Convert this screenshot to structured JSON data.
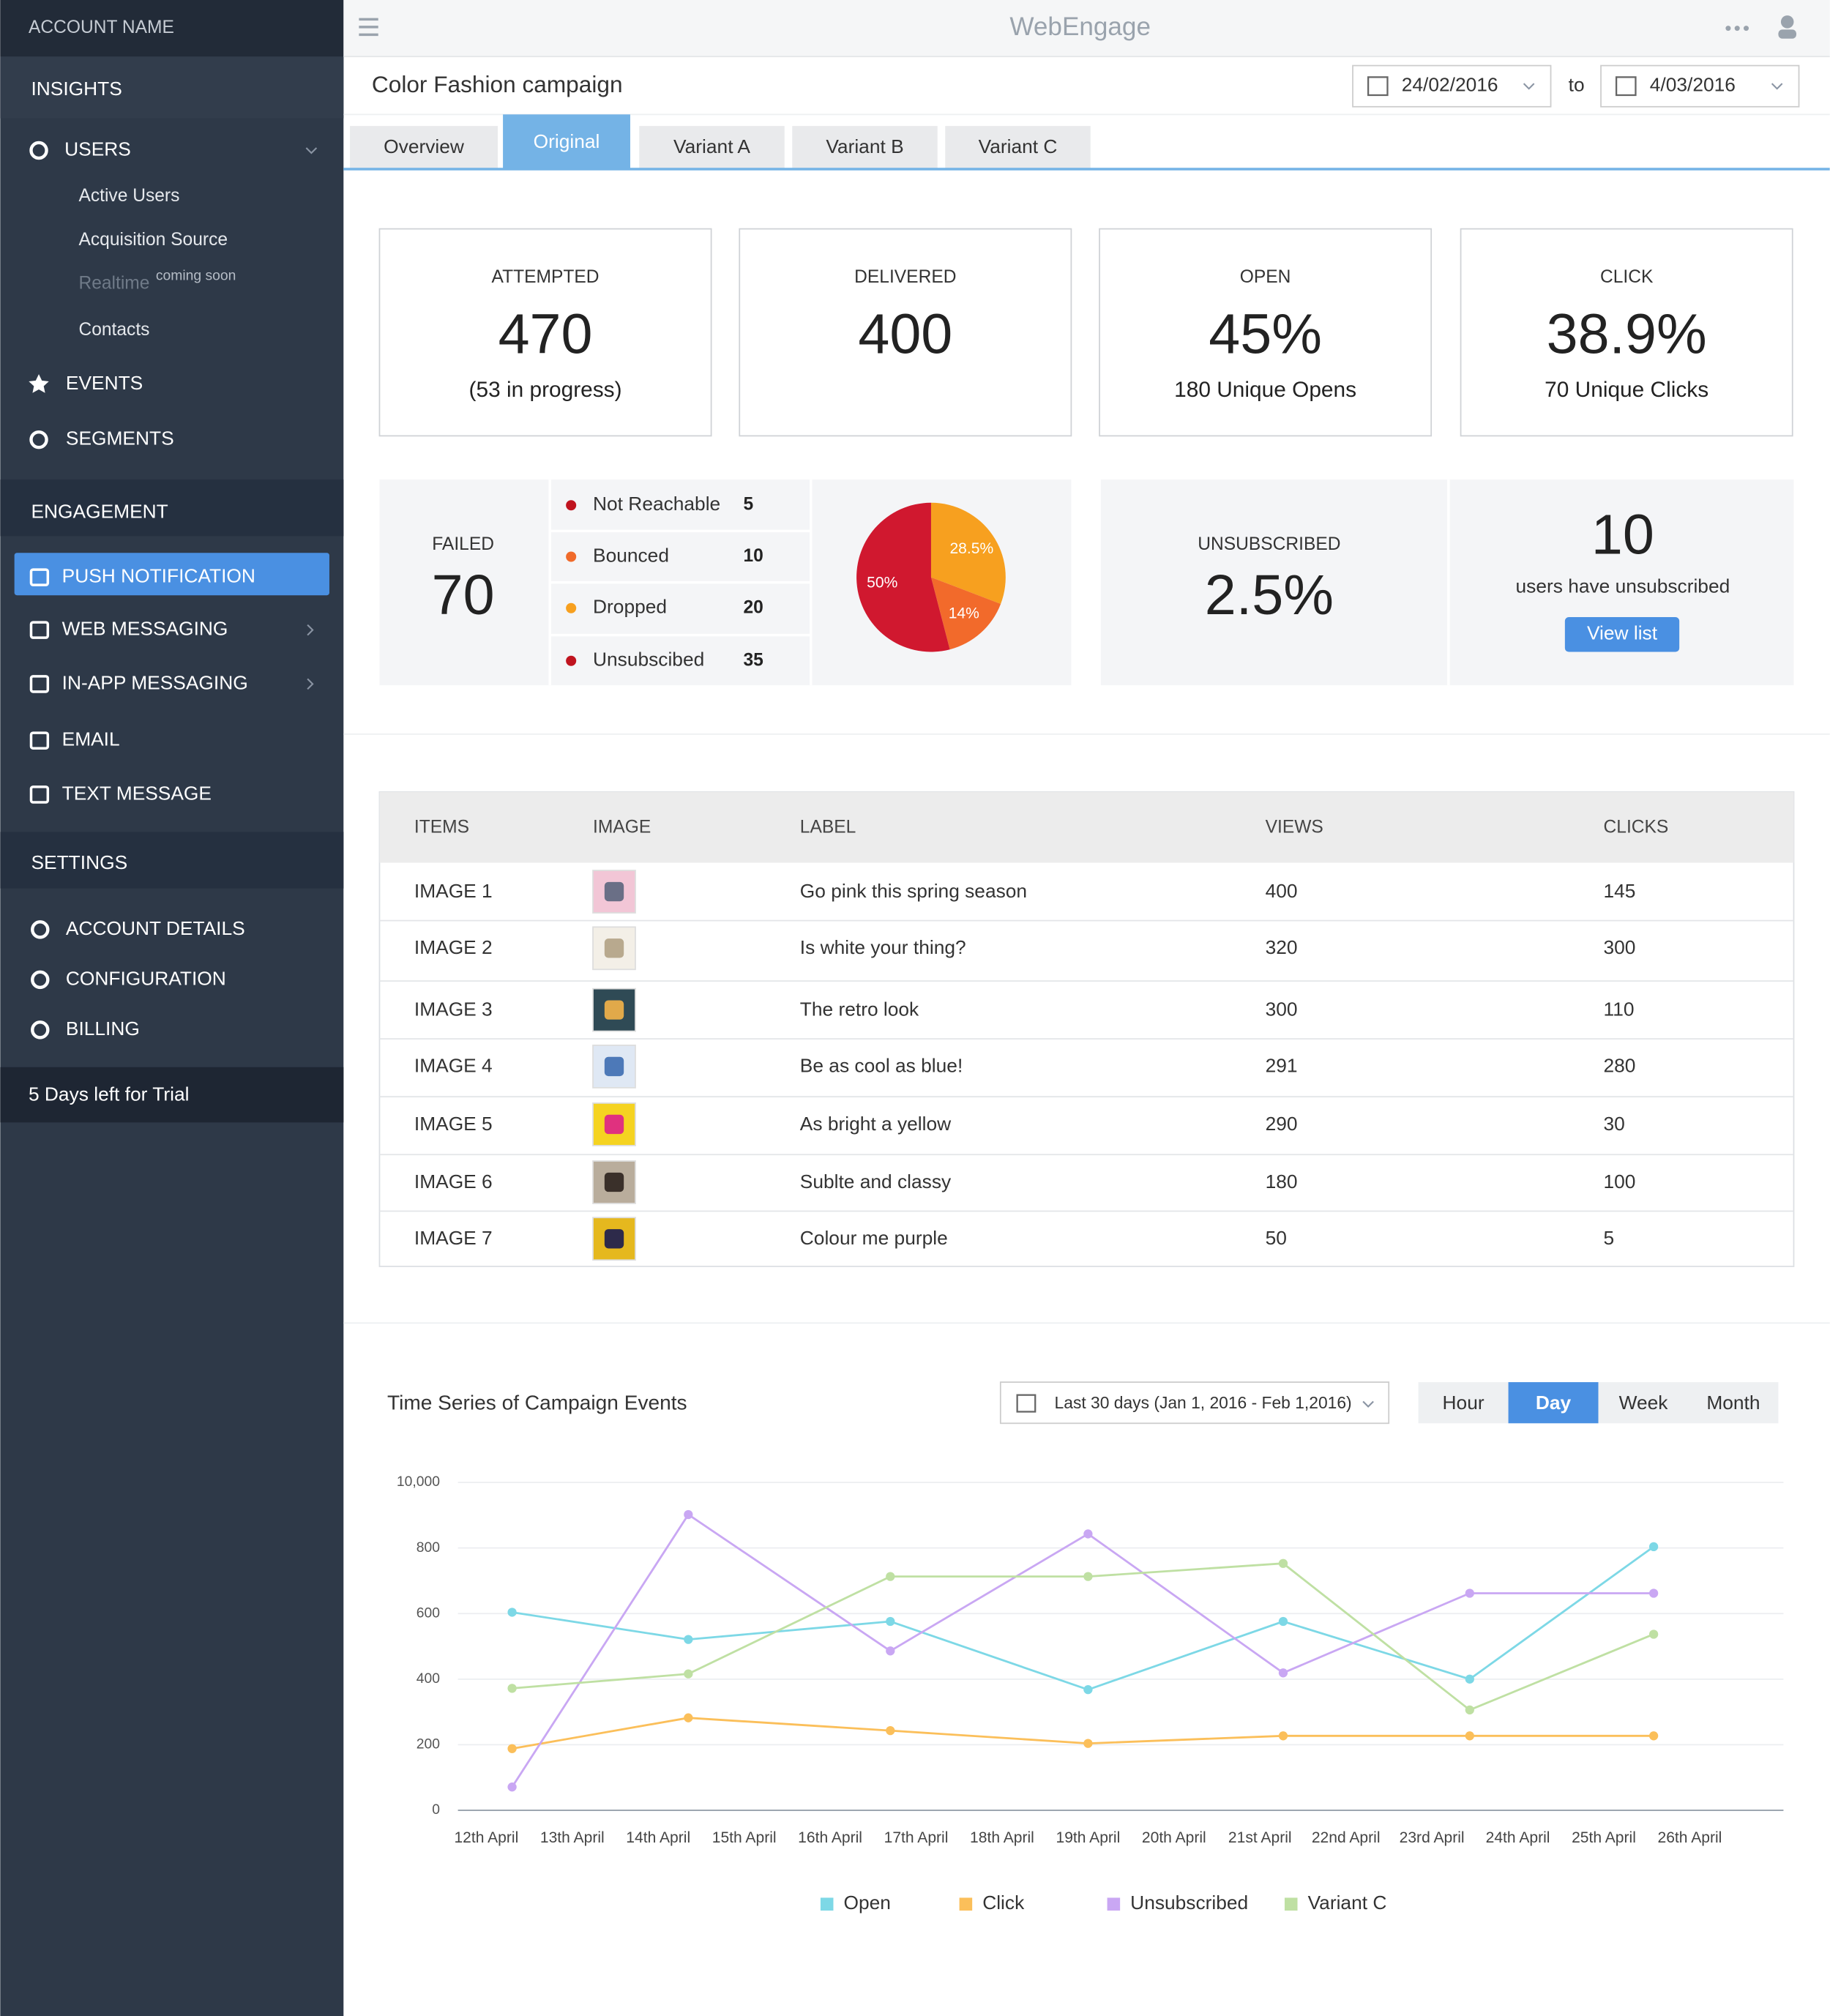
{
  "sidebar": {
    "account_name": "ACCOUNT NAME",
    "insights": "INSIGHTS",
    "users": "USERS",
    "users_items": [
      "Active Users",
      "Acquisition Source",
      "Realtime",
      "Contacts"
    ],
    "coming_soon": "coming soon",
    "events": "EVENTS",
    "segments": "SEGMENTS",
    "engagement": "ENGAGEMENT",
    "engagement_items": [
      "PUSH NOTIFICATION",
      "WEB MESSAGING",
      "IN-APP MESSAGING",
      "EMAIL",
      "TEXT MESSAGE"
    ],
    "settings": "SETTINGS",
    "settings_items": [
      "ACCOUNT DETAILS",
      "CONFIGURATION",
      "BILLING"
    ],
    "trial": "5 Days left for Trial"
  },
  "header": {
    "logo": "WebEngage",
    "campaign": "Color Fashion campaign",
    "date_from": "24/02/2016",
    "to": "to",
    "date_to": "4/03/2016"
  },
  "tabs": [
    "Overview",
    "Original",
    "Variant A",
    "Variant B",
    "Variant C"
  ],
  "stats": [
    {
      "label": "ATTEMPTED",
      "value": "470",
      "note": "(53 in progress)"
    },
    {
      "label": "DELIVERED",
      "value": "400"
    },
    {
      "label": "OPEN",
      "value": "45%",
      "note": "180 Unique Opens"
    },
    {
      "label": "CLICK",
      "value": "38.9%",
      "note": "70 Unique Clicks"
    }
  ],
  "failed": {
    "label": "FAILED",
    "value": "70",
    "reasons": [
      {
        "name": "Not Reachable",
        "count": "5",
        "color": "#c0141f"
      },
      {
        "name": "Bounced",
        "count": "10",
        "color": "#f06a2a"
      },
      {
        "name": "Dropped",
        "count": "20",
        "color": "#f7a01f"
      },
      {
        "name": "Unsubscibed",
        "count": "35",
        "color": "#c0141f"
      }
    ]
  },
  "unsubscribed": {
    "label": "UNSUBSCRIBED",
    "value": "2.5%",
    "count": "10",
    "note": "users have unsubscribed",
    "button": "View list"
  },
  "table": {
    "columns": [
      "ITEMS",
      "IMAGE",
      "LABEL",
      "VIEWS",
      "CLICKS"
    ],
    "rows": [
      [
        "IMAGE 1",
        "Go pink this spring season",
        "400",
        "145"
      ],
      [
        "IMAGE 2",
        "Is white your thing?",
        "320",
        "300"
      ],
      [
        "IMAGE 3",
        "The retro look",
        "300",
        "110"
      ],
      [
        "IMAGE 4",
        "Be as cool as blue!",
        "291",
        "280"
      ],
      [
        "IMAGE 5",
        "As bright a yellow",
        "290",
        "30"
      ],
      [
        "IMAGE 6",
        "Sublte and classy",
        "180",
        "100"
      ],
      [
        "IMAGE 7",
        "Colour me purple",
        "50",
        "5"
      ]
    ]
  },
  "timeseries": {
    "title": "Time Series of Campaign Events",
    "range": "Last 30 days (Jan 1, 2016 - Feb 1,2016)",
    "granularity": [
      "Hour",
      "Day",
      "Week",
      "Month"
    ]
  },
  "chart_data": [
    {
      "type": "pie",
      "values": [
        28.5,
        14,
        50
      ],
      "value_labels": [
        "28.5%",
        "14%",
        "50%"
      ],
      "colors": [
        "#f7a01f",
        "#f26a2b",
        "#d0182f"
      ]
    },
    {
      "type": "line",
      "x": [
        12.3,
        14.35,
        16.7,
        19,
        21.27,
        23.44,
        25.58
      ],
      "xlim": [
        11.67,
        27.09
      ],
      "xticks": [
        {
          "value": 12,
          "label": "12th April"
        },
        {
          "value": 13,
          "label": "13th April"
        },
        {
          "value": 14,
          "label": "14th April"
        },
        {
          "value": 15,
          "label": "15th April"
        },
        {
          "value": 16,
          "label": "16th April"
        },
        {
          "value": 17,
          "label": "17th April"
        },
        {
          "value": 18,
          "label": "18th April"
        },
        {
          "value": 19,
          "label": "19th April"
        },
        {
          "value": 20,
          "label": "20th April"
        },
        {
          "value": 21,
          "label": "21st April"
        },
        {
          "value": 22,
          "label": "22nd April"
        },
        {
          "value": 23,
          "label": "23rd April"
        },
        {
          "value": 24,
          "label": "24th April"
        },
        {
          "value": 25,
          "label": "25th April"
        },
        {
          "value": 26,
          "label": "26th April"
        }
      ],
      "ylim": [
        0,
        1000
      ],
      "yticks": [
        0,
        200,
        400,
        600,
        800
      ],
      "y_top_label": "10,000",
      "grid": true,
      "legend": "bottom",
      "series": [
        {
          "name": "Open",
          "color": "#7dd8e6",
          "values": [
            604,
            521,
            576,
            368,
            576,
            400,
            804
          ]
        },
        {
          "name": "Click",
          "color": "#fbbf5a",
          "values": [
            188,
            282,
            243,
            204,
            227,
            227,
            227
          ]
        },
        {
          "name": "Unsubscribed",
          "color": "#c9a7f3",
          "values": [
            71,
            902,
            486,
            843,
            419,
            662,
            662
          ]
        },
        {
          "name": "Variant C",
          "color": "#bfe0a3",
          "values": [
            372,
            416,
            713,
            713,
            753,
            306,
            537
          ]
        }
      ]
    }
  ]
}
